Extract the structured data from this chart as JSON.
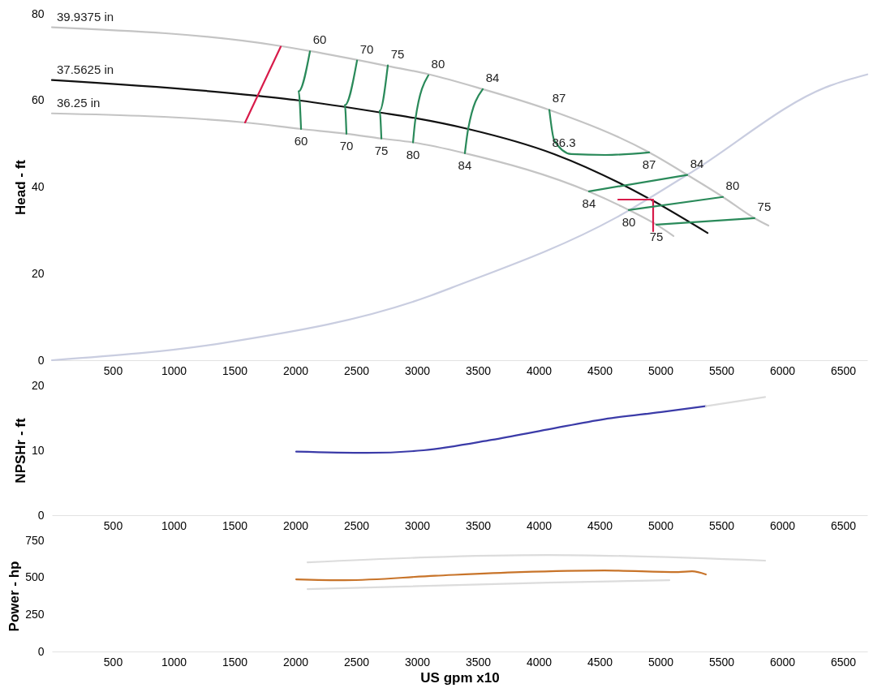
{
  "chart_data": [
    {
      "type": "line",
      "ylabel": "Head - ft",
      "xlim": [
        0,
        6700
      ],
      "xticks": [
        500,
        1000,
        1500,
        2000,
        2500,
        3000,
        3500,
        4000,
        4500,
        5000,
        5500,
        6000,
        6500
      ],
      "ylim": [
        0,
        80
      ],
      "yticks": [
        0,
        20,
        40,
        60,
        80
      ],
      "series": [
        {
          "name": "39.9375 in",
          "color": "#c4c4c4",
          "x": [
            0,
            1867,
            2120,
            2767,
            3100,
            3540,
            4087,
            4907,
            5220,
            5513,
            5773,
            5887
          ],
          "values": [
            76.9,
            72.6,
            71.4,
            67.9,
            66,
            62.6,
            57.8,
            48,
            42.8,
            37.7,
            32.8,
            31.1
          ]
        },
        {
          "name": "37.5625 in",
          "color": "#111111",
          "x": [
            0,
            1680,
            2027,
            2767,
            2987,
            3420,
            4127,
            4707,
            4940,
            5387
          ],
          "values": [
            64.7,
            61.1,
            60,
            56.9,
            55.9,
            53.4,
            47.6,
            40.3,
            36.8,
            29.4
          ]
        },
        {
          "name": "36.25 in",
          "color": "#c4c4c4",
          "x": [
            0,
            1587,
            2047,
            2420,
            2707,
            2967,
            3393,
            4407,
            4740,
            4967,
            5107
          ],
          "values": [
            57,
            54.9,
            53.4,
            52.3,
            51.2,
            50.3,
            47.8,
            39,
            34.7,
            31.3,
            28.7
          ]
        },
        {
          "color": "#c9cde0",
          "x": [
            0,
            1433,
            3100,
            3280,
            4640,
            5220,
            6393,
            6700
          ],
          "values": [
            0,
            4.1,
            14.8,
            16.7,
            33,
            42.8,
            63.4,
            66
          ]
        },
        {
          "color": "#d81b4a",
          "x": [
            1880,
            1587
          ],
          "values": [
            72.4,
            54.9
          ]
        },
        {
          "color": "#d81b4a",
          "x": [
            4653,
            4940,
            4940
          ],
          "values": [
            37.1,
            37.1,
            29.8
          ]
        },
        {
          "color": "#2a8a5a",
          "x": [
            2120,
            2027,
            2047
          ],
          "values": [
            71.3,
            62.1,
            53.4
          ]
        },
        {
          "color": "#2a8a5a",
          "x": [
            2507,
            2407,
            2420
          ],
          "values": [
            69.2,
            58.9,
            52.3
          ]
        },
        {
          "color": "#2a8a5a",
          "x": [
            2760,
            2693,
            2707
          ],
          "values": [
            68.1,
            57.6,
            51.2
          ]
        },
        {
          "color": "#2a8a5a",
          "x": [
            3093,
            2987,
            2967
          ],
          "values": [
            65.8,
            55.7,
            50.3
          ]
        },
        {
          "color": "#2a8a5a",
          "x": [
            3540,
            3420,
            3393
          ],
          "values": [
            62.6,
            53.4,
            47.8
          ]
        },
        {
          "color": "#2a8a5a",
          "x": [
            4087,
            4127,
            4267,
            4547,
            4907
          ],
          "values": [
            57.8,
            50.8,
            47.6,
            47.4,
            48
          ]
        },
        {
          "color": "#2a8a5a",
          "x": [
            4413,
            5220
          ],
          "values": [
            39,
            42.8
          ]
        },
        {
          "color": "#2a8a5a",
          "x": [
            4740,
            5513
          ],
          "values": [
            34.7,
            37.7
          ]
        },
        {
          "color": "#2a8a5a",
          "x": [
            4967,
            5773
          ],
          "values": [
            31.3,
            32.8
          ]
        }
      ],
      "annotations": [
        {
          "text": "60",
          "x": 2120,
          "y": 71.3
        },
        {
          "text": "70",
          "x": 2507,
          "y": 69.2
        },
        {
          "text": "75",
          "x": 2760,
          "y": 68.1
        },
        {
          "text": "80",
          "x": 3093,
          "y": 65.8
        },
        {
          "text": "84",
          "x": 3540,
          "y": 62.6
        },
        {
          "text": "87",
          "x": 4087,
          "y": 57.8
        },
        {
          "text": "86.3",
          "x": 4127,
          "y": 47.6
        },
        {
          "text": "87",
          "x": 4907,
          "y": 48
        },
        {
          "text": "84",
          "x": 5220,
          "y": 42.8
        },
        {
          "text": "80",
          "x": 5513,
          "y": 37.7
        },
        {
          "text": "75",
          "x": 5773,
          "y": 32.8
        },
        {
          "text": "60",
          "x": 2047,
          "y": 53.4
        },
        {
          "text": "70",
          "x": 2420,
          "y": 52.3
        },
        {
          "text": "75",
          "x": 2707,
          "y": 51.2
        },
        {
          "text": "80",
          "x": 2967,
          "y": 50.3
        },
        {
          "text": "84",
          "x": 3393,
          "y": 47.8
        },
        {
          "text": "84",
          "x": 4413,
          "y": 39
        },
        {
          "text": "80",
          "x": 4740,
          "y": 34.7
        },
        {
          "text": "75",
          "x": 4967,
          "y": 31.3
        }
      ]
    },
    {
      "type": "line",
      "ylabel": "NPSHr - ft",
      "xlim": [
        0,
        6700
      ],
      "xticks": [
        500,
        1000,
        1500,
        2000,
        2500,
        3000,
        3500,
        4000,
        4500,
        5000,
        5500,
        6000,
        6500
      ],
      "ylim": [
        0,
        20
      ],
      "yticks": [
        0,
        10,
        20
      ],
      "series": [
        {
          "color": "#3b3ba8",
          "x": [
            2007,
            2593,
            3053,
            3613,
            4073,
            4540,
            5007,
            5373
          ],
          "values": [
            9.8,
            9.6,
            10,
            11.6,
            13.2,
            14.8,
            15.9,
            16.8
          ]
        },
        {
          "color": "#dcdcdc",
          "x": [
            5373,
            5860
          ],
          "values": [
            16.8,
            18.2
          ]
        }
      ]
    },
    {
      "type": "line",
      "ylabel": "Power - hp",
      "xlabel": "US gpm x10",
      "xlim": [
        0,
        6700
      ],
      "xticks": [
        500,
        1000,
        1500,
        2000,
        2500,
        3000,
        3500,
        4000,
        4500,
        5000,
        5500,
        6000,
        6500
      ],
      "ylim": [
        0,
        750
      ],
      "yticks": [
        0,
        250,
        500,
        750
      ],
      "series": [
        {
          "color": "#dcdcdc",
          "x": [
            2100,
            4073,
            5860
          ],
          "values": [
            602,
            651,
            613
          ]
        },
        {
          "color": "#dcdcdc",
          "x": [
            2100,
            4073,
            5073
          ],
          "values": [
            421,
            465,
            481
          ]
        },
        {
          "color": "#c8742a",
          "x": [
            2007,
            2407,
            3147,
            3847,
            4540,
            5147,
            5260,
            5373
          ],
          "values": [
            487,
            481,
            511,
            536,
            547,
            536,
            541,
            520
          ]
        }
      ]
    }
  ]
}
